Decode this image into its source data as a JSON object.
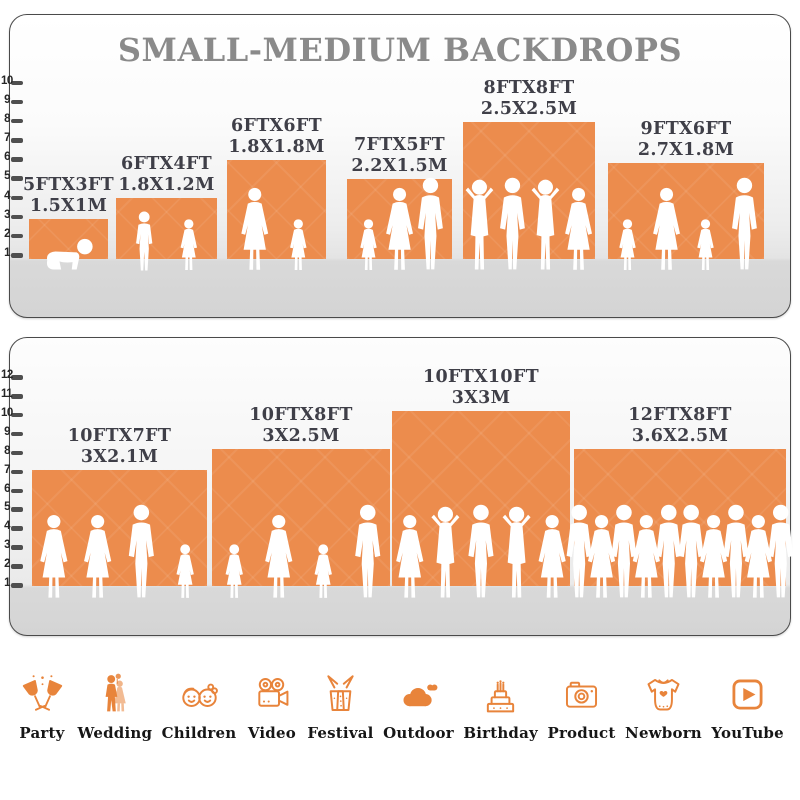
{
  "title": "SMALL-MEDIUM BACKDROPS",
  "panels": [
    {
      "ruler": {
        "min": 1,
        "max": 10,
        "unit": "ft"
      },
      "backdrops": [
        {
          "size_ft": "5FTX3FT",
          "size_m": "1.5X1M",
          "width_ft": 5,
          "height_ft": 3,
          "figures": [
            "baby"
          ]
        },
        {
          "size_ft": "6FTX4FT",
          "size_m": "1.8X1.2M",
          "width_ft": 6,
          "height_ft": 4,
          "figures": [
            "child",
            "girl"
          ]
        },
        {
          "size_ft": "6FTX6FT",
          "size_m": "1.8X1.8M",
          "width_ft": 6,
          "height_ft": 6,
          "figures": [
            "woman",
            "girl"
          ]
        },
        {
          "size_ft": "7FTX5FT",
          "size_m": "2.2X1.5M",
          "width_ft": 7,
          "height_ft": 5,
          "figures": [
            "girl",
            "woman",
            "man"
          ]
        },
        {
          "size_ft": "8FTX8FT",
          "size_m": "2.5X2.5M",
          "width_ft": 8,
          "height_ft": 8,
          "figures": [
            "man-pose",
            "man",
            "man-pose",
            "woman"
          ]
        },
        {
          "size_ft": "9FTX6FT",
          "size_m": "2.7X1.8M",
          "width_ft": 9,
          "height_ft": 6,
          "figures": [
            "girl",
            "woman",
            "girl",
            "man"
          ]
        }
      ]
    },
    {
      "ruler": {
        "min": 1,
        "max": 12,
        "unit": "ft"
      },
      "backdrops": [
        {
          "size_ft": "10FTX7FT",
          "size_m": "3X2.1M",
          "width_ft": 10,
          "height_ft": 7,
          "figures": [
            "woman",
            "woman",
            "man",
            "girl"
          ]
        },
        {
          "size_ft": "10FTX8FT",
          "size_m": "3X2.5M",
          "width_ft": 10,
          "height_ft": 8,
          "figures": [
            "girl",
            "woman",
            "girl",
            "man"
          ]
        },
        {
          "size_ft": "10FTX10FT",
          "size_m": "3X3M",
          "width_ft": 10,
          "height_ft": 10,
          "figures": [
            "woman",
            "man-pose",
            "man",
            "man-pose",
            "woman"
          ]
        },
        {
          "size_ft": "12FTX8FT",
          "size_m": "3.6X2.5M",
          "width_ft": 12,
          "height_ft": 8,
          "figures": [
            "man",
            "woman",
            "man",
            "woman",
            "man",
            "man",
            "woman",
            "man",
            "woman",
            "man"
          ]
        }
      ]
    }
  ],
  "categories": [
    {
      "icon": "party-icon",
      "label": "Party"
    },
    {
      "icon": "wedding-icon",
      "label": "Wedding"
    },
    {
      "icon": "children-icon",
      "label": "Children"
    },
    {
      "icon": "video-icon",
      "label": "Video"
    },
    {
      "icon": "festival-icon",
      "label": "Festival"
    },
    {
      "icon": "outdoor-icon",
      "label": "Outdoor"
    },
    {
      "icon": "birthday-icon",
      "label": "Birthday"
    },
    {
      "icon": "product-icon",
      "label": "Product"
    },
    {
      "icon": "newborn-icon",
      "label": "Newborn"
    },
    {
      "icon": "youtube-icon",
      "label": "YouTube"
    }
  ],
  "colors": {
    "backdrop_orange": "#EC8C4D",
    "icon_orange": "#E8843B",
    "label_text": "#3F3F48",
    "title_gray": "#8A8A8A",
    "ruler_tick": "#4F4F4F",
    "panel_border": "#4A4A4A",
    "floor_gray": "#D6D6D6"
  },
  "chart_data": {
    "type": "bar",
    "title": "SMALL-MEDIUM BACKDROPS",
    "ylabel": "feet",
    "panels": [
      {
        "axis_range": [
          1,
          10
        ],
        "categories": [
          "5FTX3FT",
          "6FTX4FT",
          "6FTX6FT",
          "7FTX5FT",
          "8FTX8FT",
          "9FTX6FT"
        ],
        "series": [
          {
            "name": "height_ft",
            "values": [
              3,
              4,
              6,
              5,
              8,
              6
            ]
          },
          {
            "name": "width_ft",
            "values": [
              5,
              6,
              6,
              7,
              8,
              9
            ]
          }
        ],
        "meter_labels": [
          "1.5X1M",
          "1.8X1.2M",
          "1.8X1.8M",
          "2.2X1.5M",
          "2.5X2.5M",
          "2.7X1.8M"
        ]
      },
      {
        "axis_range": [
          1,
          12
        ],
        "categories": [
          "10FTX7FT",
          "10FTX8FT",
          "10FTX10FT",
          "12FTX8FT"
        ],
        "series": [
          {
            "name": "height_ft",
            "values": [
              7,
              8,
              10,
              8
            ]
          },
          {
            "name": "width_ft",
            "values": [
              10,
              10,
              10,
              12
            ]
          }
        ],
        "meter_labels": [
          "3X2.1M",
          "3X2.5M",
          "3X3M",
          "3.6X2.5M"
        ]
      }
    ]
  }
}
